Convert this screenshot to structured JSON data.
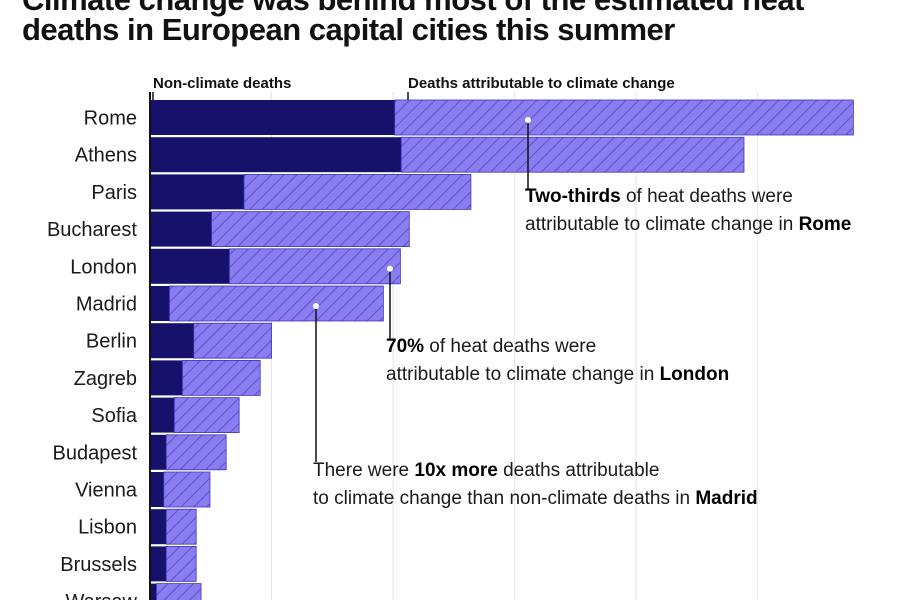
{
  "title_lines": [
    "Climate change was behind most of the estimated heat",
    "deaths in European capital cities this summer"
  ],
  "chart_data": {
    "type": "bar",
    "orientation": "horizontal",
    "stacked": true,
    "categories": [
      "Rome",
      "Athens",
      "Paris",
      "Bucharest",
      "London",
      "Madrid",
      "Berlin",
      "Zagreb",
      "Sofia",
      "Budapest",
      "Vienna",
      "Lisbon",
      "Brussels",
      "Warsaw"
    ],
    "series": [
      {
        "name": "Non-climate deaths",
        "color": "#16116b",
        "values": [
          302,
          310,
          116,
          76,
          98,
          24,
          54,
          40,
          30,
          20,
          17,
          20,
          20,
          8
        ]
      },
      {
        "name": "Deaths attributable to climate change",
        "color": "#8a7df0",
        "values": [
          566,
          423,
          280,
          244,
          211,
          264,
          96,
          96,
          80,
          74,
          57,
          37,
          37,
          55
        ]
      }
    ],
    "legend": [
      "Non-climate deaths",
      "Deaths attributable to climate change"
    ],
    "legend_position": "top",
    "xlim": [
      0,
      870
    ],
    "grid": true,
    "annotations": [
      {
        "category": "Rome",
        "segments": [
          {
            "bold": "Two-thirds"
          },
          {
            "text": " of heat deaths were"
          },
          {
            "br": true
          },
          {
            "text": "attributable to climate change in "
          },
          {
            "bold": "Rome"
          }
        ]
      },
      {
        "category": "London",
        "segments": [
          {
            "bold": "70%"
          },
          {
            "text": " of heat deaths were"
          },
          {
            "br": true
          },
          {
            "text": "attributable to climate change in "
          },
          {
            "bold": "London"
          }
        ]
      },
      {
        "category": "Madrid",
        "segments": [
          {
            "text": "There were "
          },
          {
            "bold": "10x more"
          },
          {
            "text": " deaths attributable"
          },
          {
            "br": true
          },
          {
            "text": "to climate change than non-climate deaths in "
          },
          {
            "bold": "Madrid"
          }
        ]
      }
    ]
  }
}
